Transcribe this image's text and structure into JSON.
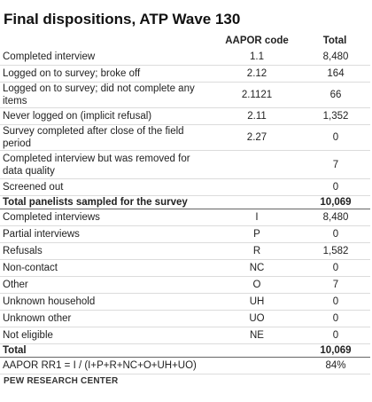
{
  "title": "Final dispositions, ATP Wave 130",
  "columns": {
    "code": "AAPOR code",
    "total": "Total"
  },
  "rows": [
    {
      "label": "Completed interview",
      "code": "1.1",
      "total": "8,480",
      "kind": "r1"
    },
    {
      "label": "Logged on to survey; broke off",
      "code": "2.12",
      "total": "164",
      "kind": "r1"
    },
    {
      "label": "Logged on to survey; did not complete any items",
      "code": "2.1121",
      "total": "66",
      "kind": "r1"
    },
    {
      "label": "Never logged on (implicit refusal)",
      "code": "2.11",
      "total": "1,352",
      "kind": "r1"
    },
    {
      "label": "Survey completed after close of the field period",
      "code": "2.27",
      "total": "0",
      "kind": "r1"
    },
    {
      "label": "Completed interview but was removed for data quality",
      "code": "",
      "total": "7",
      "kind": "r2"
    },
    {
      "label": "Screened out",
      "code": "",
      "total": "0",
      "kind": "r1"
    },
    {
      "label": "Total panelists sampled for the survey",
      "code": "",
      "total": "10,069",
      "kind": "total"
    },
    {
      "label": "Completed interviews",
      "code": "I",
      "total": "8,480",
      "kind": "r1"
    },
    {
      "label": "Partial interviews",
      "code": "P",
      "total": "0",
      "kind": "r1"
    },
    {
      "label": "Refusals",
      "code": "R",
      "total": "1,582",
      "kind": "r1"
    },
    {
      "label": "Non-contact",
      "code": "NC",
      "total": "0",
      "kind": "r1"
    },
    {
      "label": "Other",
      "code": "O",
      "total": "7",
      "kind": "r1"
    },
    {
      "label": "Unknown household",
      "code": "UH",
      "total": "0",
      "kind": "r1"
    },
    {
      "label": "Unknown other",
      "code": "UO",
      "total": "0",
      "kind": "r1"
    },
    {
      "label": "Not eligible",
      "code": "NE",
      "total": "0",
      "kind": "r1"
    },
    {
      "label": "Total",
      "code": "",
      "total": "10,069",
      "kind": "total"
    },
    {
      "label": "AAPOR RR1 = I / (I+P+R+NC+O+UH+UO)",
      "code": "",
      "total": "84%",
      "kind": "r1"
    }
  ],
  "source": "PEW RESEARCH CENTER"
}
